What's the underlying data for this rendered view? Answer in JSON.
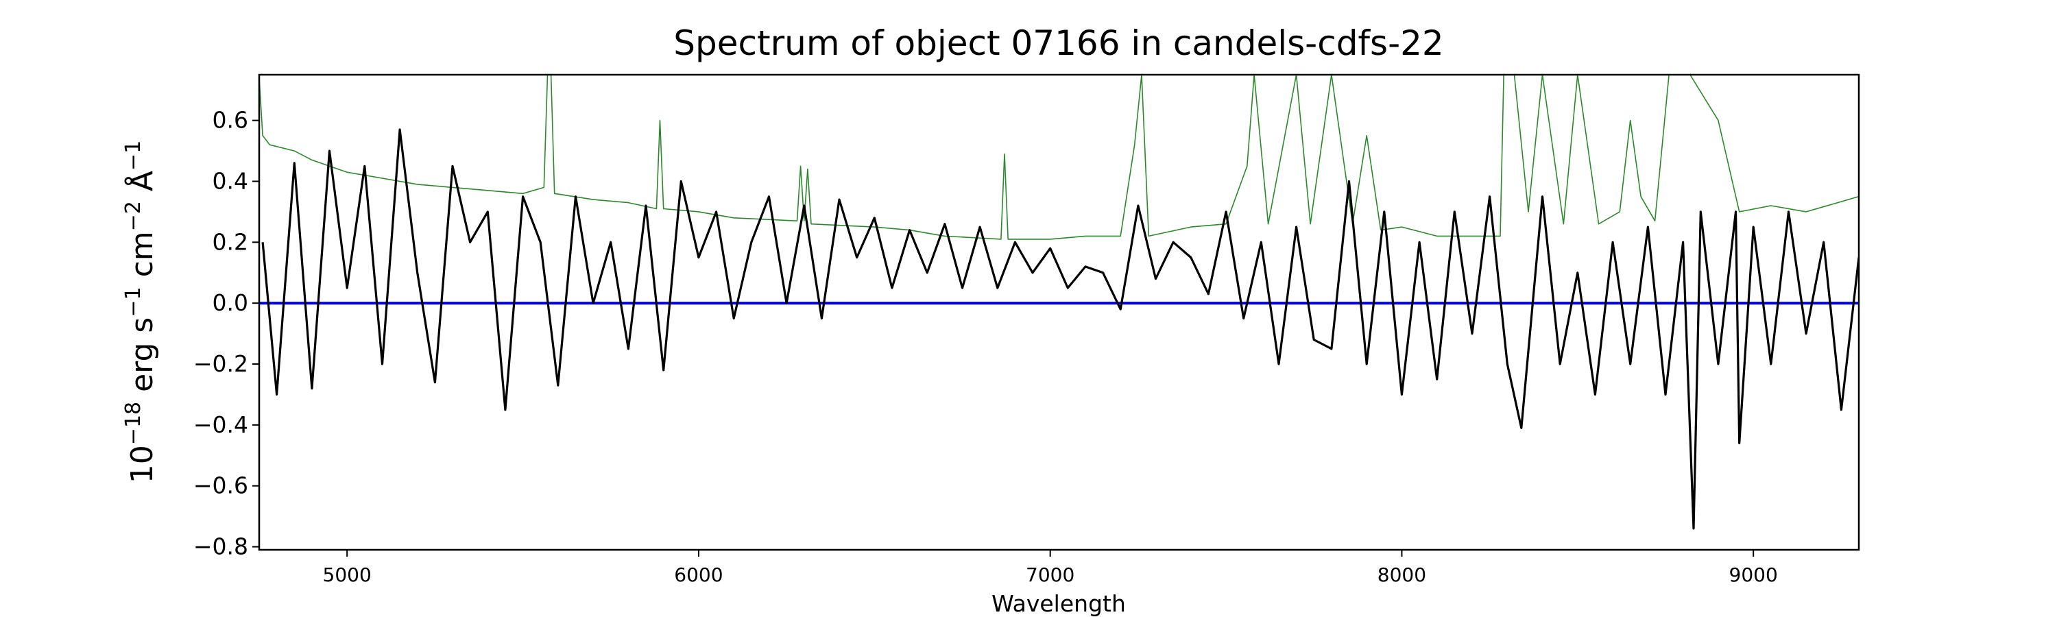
{
  "chart_data": {
    "type": "line",
    "title": "Spectrum of object 07166 in candels-cdfs-22",
    "xlabel": "Wavelength",
    "ylabel_base": "10",
    "ylabel_exp": "−18",
    "ylabel_erg": " erg s",
    "ylabel_s_exp": "−1",
    "ylabel_cm": " cm",
    "ylabel_cm_exp": "−2",
    "ylabel_ang": " Å",
    "ylabel_ang_exp": "−1",
    "xlim": [
      4750,
      9300
    ],
    "ylim": [
      -0.81,
      0.75
    ],
    "x_ticks": [
      5000,
      6000,
      7000,
      8000,
      9000
    ],
    "x_tick_labels": [
      "5000",
      "6000",
      "7000",
      "8000",
      "9000"
    ],
    "y_ticks": [
      0.6,
      0.4,
      0.2,
      0.0,
      -0.2,
      -0.4,
      -0.6,
      -0.8
    ],
    "y_tick_labels": [
      "0.6",
      "0.4",
      "0.2",
      "0.0",
      "−0.2",
      "−0.4",
      "−0.6",
      "−0.8"
    ],
    "grid": false,
    "series": [
      {
        "color": "#2a8a2a",
        "role": "error",
        "points": [
          [
            4750,
            0.74
          ],
          [
            4760,
            0.55
          ],
          [
            4780,
            0.52
          ],
          [
            4850,
            0.5
          ],
          [
            4900,
            0.47
          ],
          [
            5000,
            0.43
          ],
          [
            5100,
            0.41
          ],
          [
            5200,
            0.39
          ],
          [
            5300,
            0.38
          ],
          [
            5400,
            0.37
          ],
          [
            5500,
            0.36
          ],
          [
            5560,
            0.38
          ],
          [
            5570,
            0.75
          ],
          [
            5580,
            0.75
          ],
          [
            5590,
            0.36
          ],
          [
            5700,
            0.34
          ],
          [
            5800,
            0.33
          ],
          [
            5880,
            0.31
          ],
          [
            5890,
            0.6
          ],
          [
            5900,
            0.31
          ],
          [
            6000,
            0.3
          ],
          [
            6100,
            0.28
          ],
          [
            6280,
            0.27
          ],
          [
            6290,
            0.45
          ],
          [
            6300,
            0.27
          ],
          [
            6310,
            0.44
          ],
          [
            6320,
            0.26
          ],
          [
            6500,
            0.25
          ],
          [
            6600,
            0.24
          ],
          [
            6700,
            0.22
          ],
          [
            6860,
            0.21
          ],
          [
            6870,
            0.49
          ],
          [
            6880,
            0.21
          ],
          [
            7000,
            0.21
          ],
          [
            7100,
            0.22
          ],
          [
            7200,
            0.22
          ],
          [
            7240,
            0.52
          ],
          [
            7260,
            0.75
          ],
          [
            7280,
            0.22
          ],
          [
            7400,
            0.25
          ],
          [
            7500,
            0.26
          ],
          [
            7560,
            0.45
          ],
          [
            7580,
            0.75
          ],
          [
            7620,
            0.26
          ],
          [
            7700,
            0.75
          ],
          [
            7740,
            0.26
          ],
          [
            7800,
            0.75
          ],
          [
            7860,
            0.26
          ],
          [
            7900,
            0.55
          ],
          [
            7940,
            0.24
          ],
          [
            8000,
            0.25
          ],
          [
            8100,
            0.22
          ],
          [
            8200,
            0.22
          ],
          [
            8280,
            0.22
          ],
          [
            8290,
            0.75
          ],
          [
            8320,
            0.75
          ],
          [
            8360,
            0.3
          ],
          [
            8400,
            0.75
          ],
          [
            8460,
            0.26
          ],
          [
            8500,
            0.75
          ],
          [
            8560,
            0.26
          ],
          [
            8620,
            0.3
          ],
          [
            8650,
            0.6
          ],
          [
            8680,
            0.35
          ],
          [
            8720,
            0.27
          ],
          [
            8760,
            0.75
          ],
          [
            8820,
            0.75
          ],
          [
            8900,
            0.6
          ],
          [
            8960,
            0.3
          ],
          [
            9050,
            0.32
          ],
          [
            9150,
            0.3
          ],
          [
            9300,
            0.35
          ]
        ]
      },
      {
        "color": "#0000d0",
        "role": "model",
        "points": [
          [
            4750,
            0.0
          ],
          [
            9300,
            0.0
          ]
        ]
      },
      {
        "color": "#000000",
        "role": "flux",
        "points": [
          [
            4760,
            0.2
          ],
          [
            4800,
            -0.3
          ],
          [
            4850,
            0.46
          ],
          [
            4900,
            -0.28
          ],
          [
            4950,
            0.5
          ],
          [
            5000,
            0.05
          ],
          [
            5050,
            0.45
          ],
          [
            5100,
            -0.2
          ],
          [
            5150,
            0.57
          ],
          [
            5200,
            0.1
          ],
          [
            5250,
            -0.26
          ],
          [
            5300,
            0.45
          ],
          [
            5350,
            0.2
          ],
          [
            5400,
            0.3
          ],
          [
            5450,
            -0.35
          ],
          [
            5500,
            0.35
          ],
          [
            5550,
            0.2
          ],
          [
            5600,
            -0.27
          ],
          [
            5650,
            0.35
          ],
          [
            5700,
            0.0
          ],
          [
            5750,
            0.2
          ],
          [
            5800,
            -0.15
          ],
          [
            5850,
            0.32
          ],
          [
            5900,
            -0.22
          ],
          [
            5950,
            0.4
          ],
          [
            6000,
            0.15
          ],
          [
            6050,
            0.3
          ],
          [
            6100,
            -0.05
          ],
          [
            6150,
            0.2
          ],
          [
            6200,
            0.35
          ],
          [
            6250,
            0.0
          ],
          [
            6300,
            0.32
          ],
          [
            6350,
            -0.05
          ],
          [
            6400,
            0.34
          ],
          [
            6450,
            0.15
          ],
          [
            6500,
            0.28
          ],
          [
            6550,
            0.05
          ],
          [
            6600,
            0.24
          ],
          [
            6650,
            0.1
          ],
          [
            6700,
            0.26
          ],
          [
            6750,
            0.05
          ],
          [
            6800,
            0.25
          ],
          [
            6850,
            0.05
          ],
          [
            6900,
            0.2
          ],
          [
            6950,
            0.1
          ],
          [
            7000,
            0.18
          ],
          [
            7050,
            0.05
          ],
          [
            7100,
            0.12
          ],
          [
            7150,
            0.1
          ],
          [
            7200,
            -0.02
          ],
          [
            7250,
            0.32
          ],
          [
            7300,
            0.08
          ],
          [
            7350,
            0.2
          ],
          [
            7400,
            0.15
          ],
          [
            7450,
            0.03
          ],
          [
            7500,
            0.3
          ],
          [
            7550,
            -0.05
          ],
          [
            7600,
            0.2
          ],
          [
            7650,
            -0.2
          ],
          [
            7700,
            0.25
          ],
          [
            7750,
            -0.12
          ],
          [
            7800,
            -0.15
          ],
          [
            7850,
            0.4
          ],
          [
            7900,
            -0.2
          ],
          [
            7950,
            0.3
          ],
          [
            8000,
            -0.3
          ],
          [
            8050,
            0.2
          ],
          [
            8100,
            -0.25
          ],
          [
            8150,
            0.3
          ],
          [
            8200,
            -0.1
          ],
          [
            8250,
            0.35
          ],
          [
            8300,
            -0.2
          ],
          [
            8340,
            -0.41
          ],
          [
            8400,
            0.35
          ],
          [
            8450,
            -0.2
          ],
          [
            8500,
            0.1
          ],
          [
            8550,
            -0.3
          ],
          [
            8600,
            0.2
          ],
          [
            8650,
            -0.2
          ],
          [
            8700,
            0.25
          ],
          [
            8750,
            -0.3
          ],
          [
            8800,
            0.2
          ],
          [
            8830,
            -0.74
          ],
          [
            8850,
            0.3
          ],
          [
            8900,
            -0.2
          ],
          [
            8950,
            0.3
          ],
          [
            8960,
            -0.46
          ],
          [
            9000,
            0.25
          ],
          [
            9050,
            -0.2
          ],
          [
            9100,
            0.3
          ],
          [
            9150,
            -0.1
          ],
          [
            9200,
            0.2
          ],
          [
            9250,
            -0.35
          ],
          [
            9300,
            0.15
          ]
        ]
      }
    ]
  }
}
